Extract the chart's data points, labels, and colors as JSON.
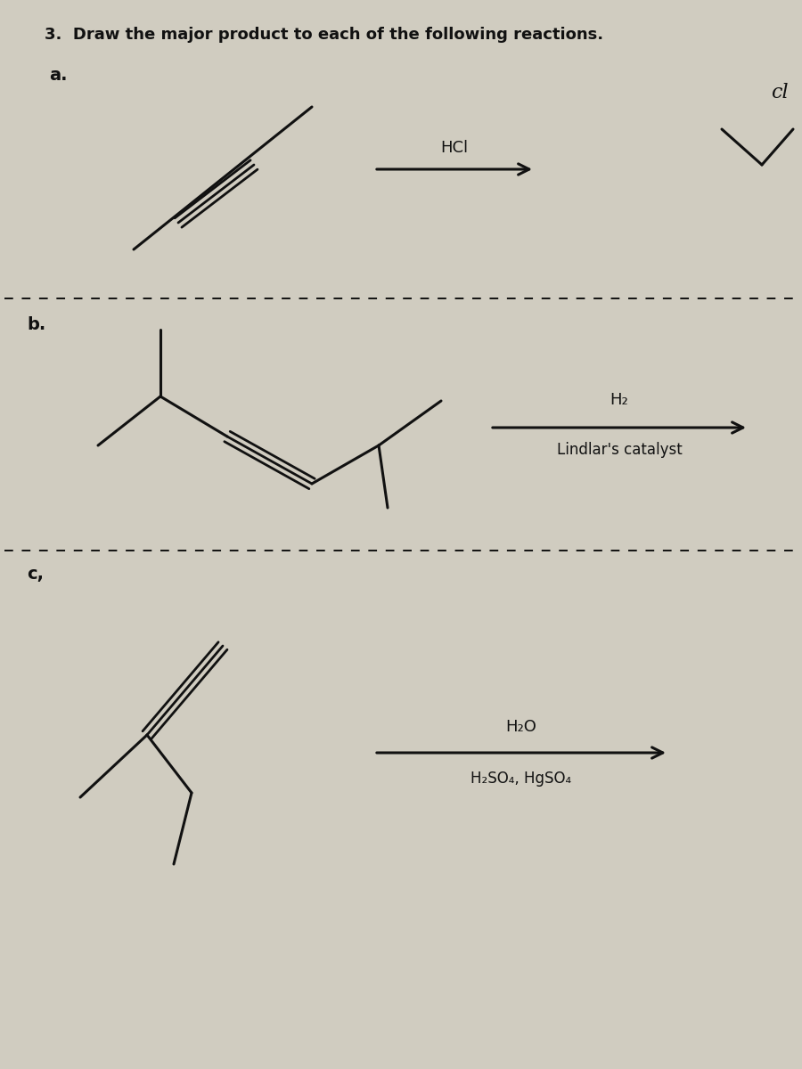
{
  "title": "3.  Draw the major product to each of the following reactions.",
  "bg_color": "#d0ccc0",
  "text_color": "#111111",
  "section_a_label": "a.",
  "section_b_label": "b.",
  "section_c_label": "c,",
  "reagent_a": "HCl",
  "reagent_b_top": "H₂",
  "reagent_b_bot": "Lindlar's catalyst",
  "reagent_c_top": "H₂O",
  "reagent_c_bot": "H₂SO₄, HgSO₄"
}
